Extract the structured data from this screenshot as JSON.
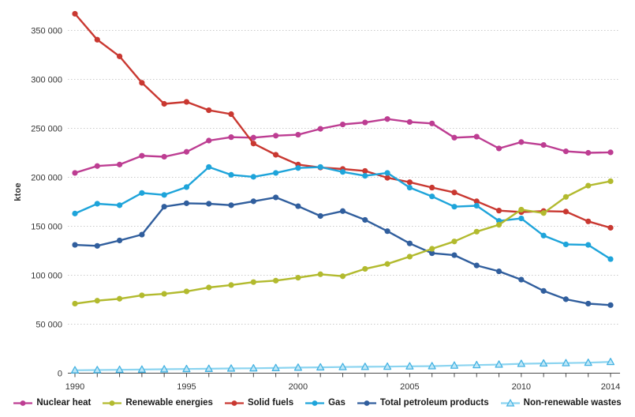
{
  "style": {
    "background": "#ffffff",
    "grid_color": "#cbcbcb",
    "axis_color": "#4a4a4a",
    "tick_label_color": "#333333",
    "legend_text_color": "#1a1a1a"
  },
  "chart_data": {
    "type": "line",
    "title": "",
    "xlabel": "",
    "ylabel": "ktoe",
    "ylim": [
      0,
      367000
    ],
    "grid": "horizontal dotted lines every 50 000",
    "legend_position": "bottom",
    "x": [
      1990,
      1991,
      1992,
      1993,
      1994,
      1995,
      1996,
      1997,
      1998,
      1999,
      2000,
      2001,
      2002,
      2003,
      2004,
      2005,
      2006,
      2007,
      2008,
      2009,
      2010,
      2011,
      2012,
      2013,
      2014
    ],
    "x_ticks_labeled": [
      1990,
      1995,
      2000,
      2005,
      2010,
      2014
    ],
    "y_ticks": [
      {
        "value": 0,
        "label": "0"
      },
      {
        "value": 50000,
        "label": "50 000"
      },
      {
        "value": 100000,
        "label": "100 000"
      },
      {
        "value": 150000,
        "label": "150 000"
      },
      {
        "value": 200000,
        "label": "200 000"
      },
      {
        "value": 250000,
        "label": "250 000"
      },
      {
        "value": 300000,
        "label": "300 000"
      },
      {
        "value": 350000,
        "label": "350 000"
      }
    ],
    "series": [
      {
        "name": "Nuclear heat",
        "slug": "nuclear-heat",
        "color": "#bd3d92",
        "marker": "circle",
        "values": [
          204500,
          211500,
          213000,
          222000,
          221000,
          226000,
          237500,
          241000,
          240500,
          242500,
          243500,
          249500,
          254000,
          256000,
          259500,
          256500,
          255000,
          240500,
          241500,
          229500,
          236000,
          233000,
          226500,
          225000,
          225500
        ]
      },
      {
        "name": "Renewable energies",
        "slug": "renewable-energies",
        "color": "#b2ba2e",
        "marker": "circle",
        "values": [
          71000,
          74000,
          76000,
          79500,
          81000,
          83500,
          87500,
          90000,
          93000,
          94500,
          97500,
          101000,
          99000,
          106500,
          111500,
          119000,
          127000,
          134500,
          144500,
          151500,
          167000,
          163500,
          180000,
          191500,
          196000
        ]
      },
      {
        "name": "Solid fuels",
        "slug": "solid-fuels",
        "color": "#c93831",
        "marker": "circle",
        "values": [
          367000,
          340500,
          323500,
          296500,
          275000,
          277000,
          268500,
          264500,
          234500,
          223000,
          213000,
          210000,
          208500,
          206500,
          199500,
          195000,
          189500,
          184500,
          175500,
          166000,
          164500,
          165500,
          165000,
          155000,
          148500
        ]
      },
      {
        "name": "Gas",
        "slug": "gas",
        "color": "#1ea4da",
        "marker": "circle",
        "values": [
          163000,
          173000,
          171500,
          184000,
          182000,
          190000,
          210500,
          202500,
          200500,
          204500,
          209500,
          210500,
          205500,
          201500,
          204500,
          189500,
          180500,
          170000,
          171000,
          155500,
          158000,
          140500,
          131500,
          131000,
          116500
        ]
      },
      {
        "name": "Total petroleum products",
        "slug": "total-petroleum-products",
        "color": "#305e9d",
        "marker": "circle",
        "values": [
          131000,
          130000,
          135500,
          141500,
          170000,
          173500,
          173000,
          171500,
          175500,
          179500,
          170500,
          160500,
          165500,
          156500,
          145000,
          132500,
          122500,
          120500,
          110000,
          104000,
          95500,
          84000,
          75500,
          71000,
          69500
        ]
      },
      {
        "name": "Non-renewable wastes",
        "slug": "non-renewable-wastes",
        "color": "#8bd4f0",
        "marker": "triangle",
        "marker_fill": "#bfe7f7",
        "marker_stroke": "#44b2e2",
        "values": [
          3000,
          3200,
          3500,
          3700,
          4000,
          4300,
          4500,
          4800,
          5000,
          5300,
          5700,
          6000,
          6300,
          6500,
          6700,
          7000,
          7200,
          7800,
          8300,
          8800,
          9600,
          10000,
          10300,
          10700,
          11500
        ]
      }
    ]
  }
}
